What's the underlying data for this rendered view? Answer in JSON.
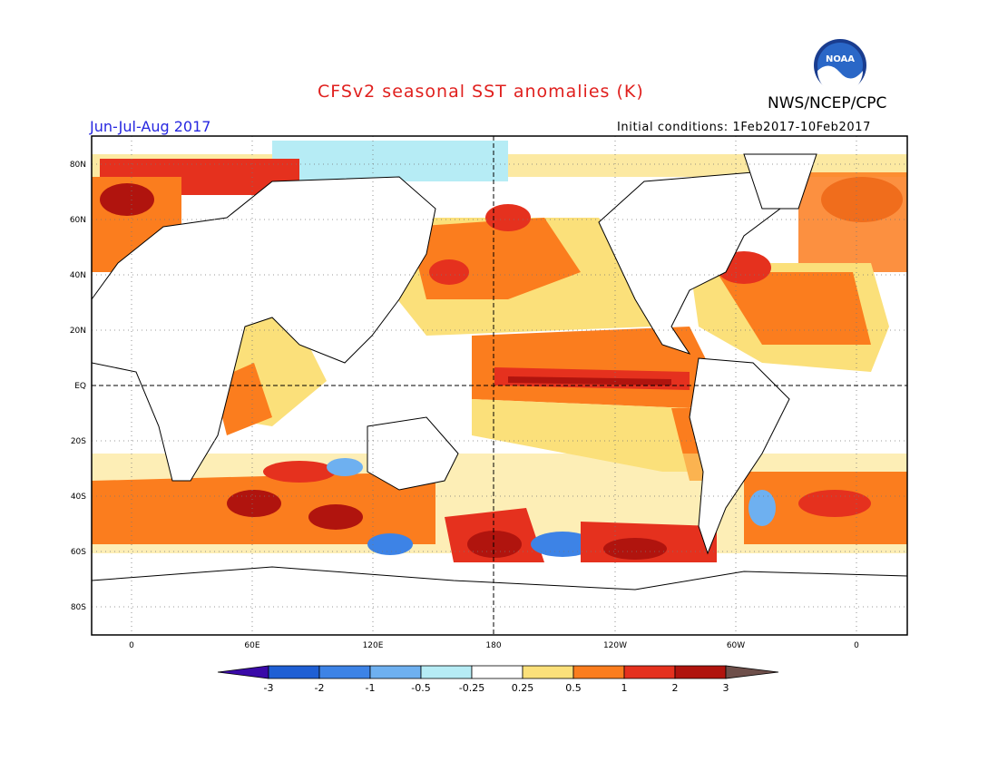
{
  "header": {
    "title": "CFSv2 seasonal SST anomalies (K)",
    "agency": "NWS/NCEP/CPC",
    "season": "Jun-Jul-Aug 2017",
    "initial_conditions": "Initial conditions: 1Feb2017-10Feb2017",
    "logo_text": "NOAA"
  },
  "map": {
    "lat_labels": [
      "80N",
      "60N",
      "40N",
      "20N",
      "EQ",
      "20S",
      "40S",
      "60S",
      "80S"
    ],
    "lon_labels": [
      "0",
      "60E",
      "120E",
      "180",
      "120W",
      "60W",
      "0"
    ]
  },
  "colorbar": {
    "labels": [
      "-3",
      "-2",
      "-1",
      "-0.5",
      "-0.25",
      "0.25",
      "0.5",
      "1",
      "2",
      "3"
    ],
    "colors": [
      "#3a0aa8",
      "#1f5fd4",
      "#3d83e6",
      "#6eb0f0",
      "#b6ecf5",
      "#ffffff",
      "#fbe07a",
      "#fb7d1e",
      "#e5311e",
      "#b0140e",
      "#6e4f4a"
    ]
  }
}
